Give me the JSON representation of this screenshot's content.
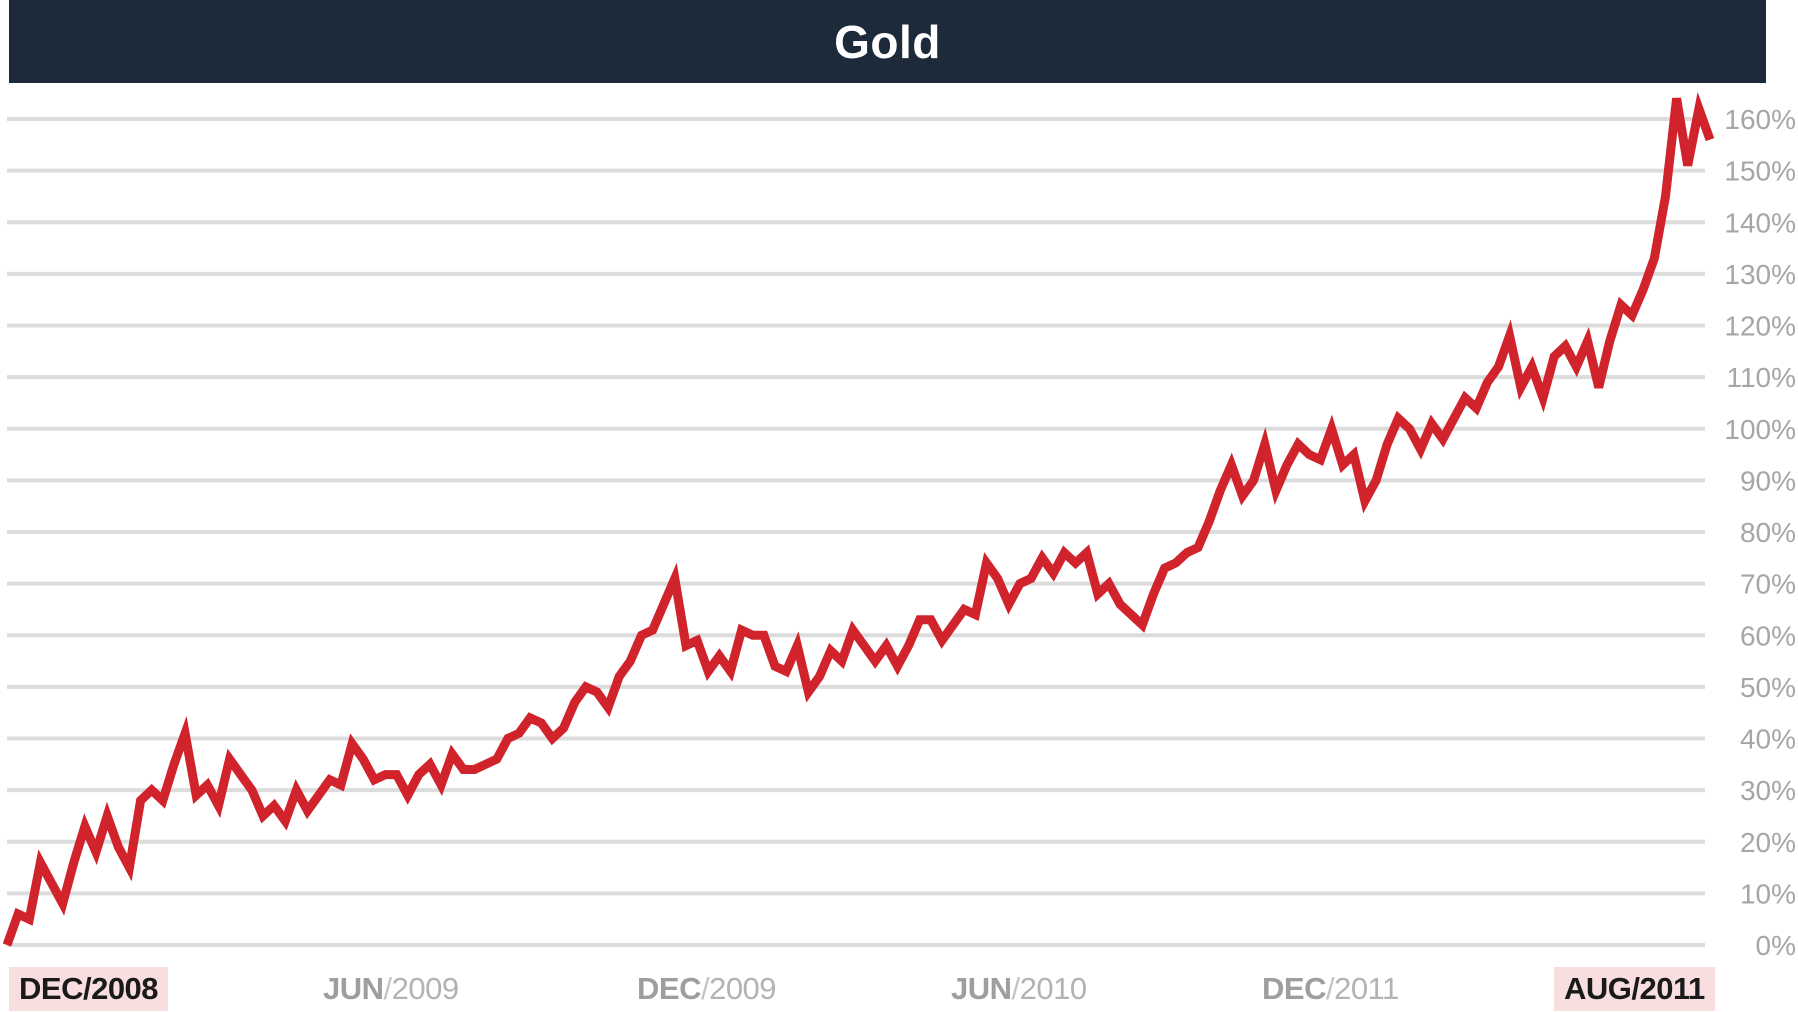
{
  "chart_data": {
    "type": "line",
    "title": "Gold",
    "xlabel": "",
    "ylabel": "",
    "ylim": [
      0,
      160
    ],
    "y_ticks": [
      "0%",
      "10%",
      "20%",
      "30%",
      "40%",
      "50%",
      "60%",
      "70%",
      "80%",
      "90%",
      "100%",
      "110%",
      "120%",
      "130%",
      "140%",
      "150%",
      "160%"
    ],
    "x_ticks": [
      {
        "month": "DEC",
        "year": "2008",
        "highlight": true
      },
      {
        "month": "JUN",
        "year": "2009",
        "highlight": false
      },
      {
        "month": "DEC",
        "year": "2009",
        "highlight": false
      },
      {
        "month": "JUN",
        "year": "2010",
        "highlight": false
      },
      {
        "month": "DEC",
        "year": "2011",
        "highlight": false
      },
      {
        "month": "AUG",
        "year": "2011",
        "highlight": true
      }
    ],
    "grid": true,
    "line_color": "#d0232b",
    "series": [
      {
        "values": [
          0,
          6,
          5,
          16,
          12,
          8,
          16,
          23,
          18,
          25,
          19,
          15,
          28,
          30,
          28,
          35,
          41,
          29,
          31,
          27,
          36,
          33,
          30,
          25,
          27,
          24,
          30,
          26,
          29,
          32,
          31,
          39,
          36,
          32,
          33,
          33,
          29,
          33,
          35,
          31,
          37,
          34,
          34,
          35,
          36,
          40,
          41,
          44,
          43,
          40,
          42,
          47,
          50,
          49,
          46,
          52,
          55,
          60,
          61,
          66,
          71,
          58,
          59,
          53,
          56,
          53,
          61,
          60,
          60,
          54,
          53,
          58,
          49,
          52,
          57,
          55,
          61,
          58,
          55,
          58,
          54,
          58,
          63,
          63,
          59,
          62,
          65,
          64,
          74,
          71,
          66,
          70,
          71,
          75,
          72,
          76,
          74,
          76,
          68,
          70,
          66,
          64,
          62,
          68,
          73,
          74,
          76,
          77,
          82,
          88,
          93,
          87,
          90,
          97,
          88,
          93,
          97,
          95,
          94,
          100,
          93,
          95,
          86,
          90,
          97,
          102,
          100,
          96,
          101,
          98,
          102,
          106,
          104,
          109,
          112,
          118,
          108,
          112,
          106,
          114,
          116,
          112,
          117,
          108,
          117,
          124,
          122,
          127,
          133,
          145,
          164,
          151,
          162,
          156
        ]
      }
    ]
  }
}
